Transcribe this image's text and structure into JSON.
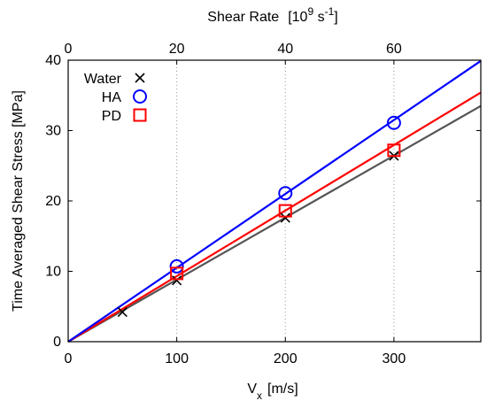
{
  "chart_data": {
    "type": "scatter",
    "xlabel": "V",
    "xlabel_sub": "x",
    "xlabel_unit": "[m/s]",
    "x2label": "Shear Rate",
    "x2label_unit_base": "[10",
    "x2label_unit_exp1": "9",
    "x2label_unit_mid": " s",
    "x2label_unit_exp2": "-1",
    "x2label_unit_end": "]",
    "ylabel": "Time Averaged Shear Stress  [MPa]",
    "xlim": [
      0,
      380
    ],
    "ylim": [
      0,
      40
    ],
    "x2lim": [
      0,
      76
    ],
    "x_ticks": [
      0,
      100,
      200,
      300
    ],
    "y_ticks": [
      0,
      10,
      20,
      30,
      40
    ],
    "x2_ticks": [
      0,
      20,
      40,
      60
    ],
    "grid": "vertical dotted at top-axis ticks",
    "legend_placement": "top-left",
    "series": [
      {
        "name": "Water",
        "marker": "x",
        "color": "#000000",
        "line_color": "#555555",
        "x": [
          50,
          100,
          200,
          300
        ],
        "y": [
          4.2,
          8.7,
          17.6,
          26.4
        ],
        "fit_x": [
          0,
          380
        ],
        "fit_y": [
          0,
          33.5
        ]
      },
      {
        "name": "HA",
        "marker": "circle",
        "color": "#0000ff",
        "line_color": "#0000ff",
        "x": [
          100,
          200,
          300
        ],
        "y": [
          10.7,
          21.1,
          31.1
        ],
        "fit_x": [
          0,
          380
        ],
        "fit_y": [
          0,
          39.9
        ]
      },
      {
        "name": "PD",
        "marker": "square",
        "color": "#ff0000",
        "line_color": "#ff0000",
        "x": [
          100,
          200,
          300
        ],
        "y": [
          9.7,
          18.6,
          27.2
        ],
        "fit_x": [
          0,
          380
        ],
        "fit_y": [
          0,
          35.4
        ]
      }
    ]
  }
}
